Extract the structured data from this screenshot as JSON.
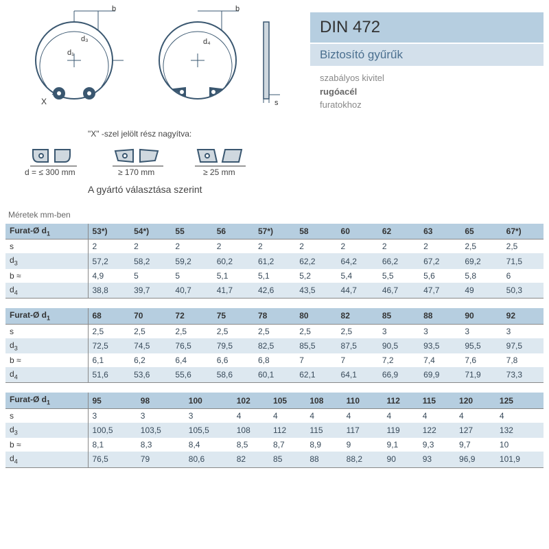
{
  "info": {
    "title": "DIN 472",
    "subtitle": "Biztosító gyűrűk",
    "desc_line1": "szabályos kivitel",
    "desc_line2": "rugóacél",
    "desc_line3": "furatokhoz"
  },
  "captions": {
    "magnify": "\"X\" -szel jelölt rész nagyítva:",
    "d_le": "d = ≤ 300 mm",
    "ge170": "≥ 170 mm",
    "ge25": "≥ 25 mm",
    "choice": "A gyártó választása szerint"
  },
  "dimensions_label": "Méretek mm-ben",
  "tables": {
    "row_labels": [
      "Furat-Ø d₁",
      "s",
      "d₃",
      "b ≈",
      "d₄"
    ],
    "header_bg": "#b6cee0",
    "row_alt_bg": "#dde8f0",
    "blocks": [
      {
        "cols": [
          "53*)",
          "54*)",
          "55",
          "56",
          "57*)",
          "58",
          "60",
          "62",
          "63",
          "65",
          "67*)"
        ],
        "rows": [
          [
            "2",
            "2",
            "2",
            "2",
            "2",
            "2",
            "2",
            "2",
            "2",
            "2,5",
            "2,5"
          ],
          [
            "57,2",
            "58,2",
            "59,2",
            "60,2",
            "61,2",
            "62,2",
            "64,2",
            "66,2",
            "67,2",
            "69,2",
            "71,5"
          ],
          [
            "4,9",
            "5",
            "5",
            "5,1",
            "5,1",
            "5,2",
            "5,4",
            "5,5",
            "5,6",
            "5,8",
            "6"
          ],
          [
            "38,8",
            "39,7",
            "40,7",
            "41,7",
            "42,6",
            "43,5",
            "44,7",
            "46,7",
            "47,7",
            "49",
            "50,3"
          ]
        ]
      },
      {
        "cols": [
          "68",
          "70",
          "72",
          "75",
          "78",
          "80",
          "82",
          "85",
          "88",
          "90",
          "92"
        ],
        "rows": [
          [
            "2,5",
            "2,5",
            "2,5",
            "2,5",
            "2,5",
            "2,5",
            "2,5",
            "3",
            "3",
            "3",
            "3"
          ],
          [
            "72,5",
            "74,5",
            "76,5",
            "79,5",
            "82,5",
            "85,5",
            "87,5",
            "90,5",
            "93,5",
            "95,5",
            "97,5"
          ],
          [
            "6,1",
            "6,2",
            "6,4",
            "6,6",
            "6,8",
            "7",
            "7",
            "7,2",
            "7,4",
            "7,6",
            "7,8"
          ],
          [
            "51,6",
            "53,6",
            "55,6",
            "58,6",
            "60,1",
            "62,1",
            "64,1",
            "66,9",
            "69,9",
            "71,9",
            "73,3"
          ]
        ]
      },
      {
        "cols": [
          "95",
          "98",
          "100",
          "102",
          "105",
          "108",
          "110",
          "112",
          "115",
          "120",
          "125"
        ],
        "rows": [
          [
            "3",
            "3",
            "3",
            "4",
            "4",
            "4",
            "4",
            "4",
            "4",
            "4",
            "4"
          ],
          [
            "100,5",
            "103,5",
            "105,5",
            "108",
            "112",
            "115",
            "117",
            "119",
            "122",
            "127",
            "132"
          ],
          [
            "8,1",
            "8,3",
            "8,4",
            "8,5",
            "8,7",
            "8,9",
            "9",
            "9,1",
            "9,3",
            "9,7",
            "10"
          ],
          [
            "76,5",
            "79",
            "80,6",
            "82",
            "85",
            "88",
            "88,2",
            "90",
            "93",
            "96,9",
            "101,9"
          ]
        ]
      }
    ]
  }
}
